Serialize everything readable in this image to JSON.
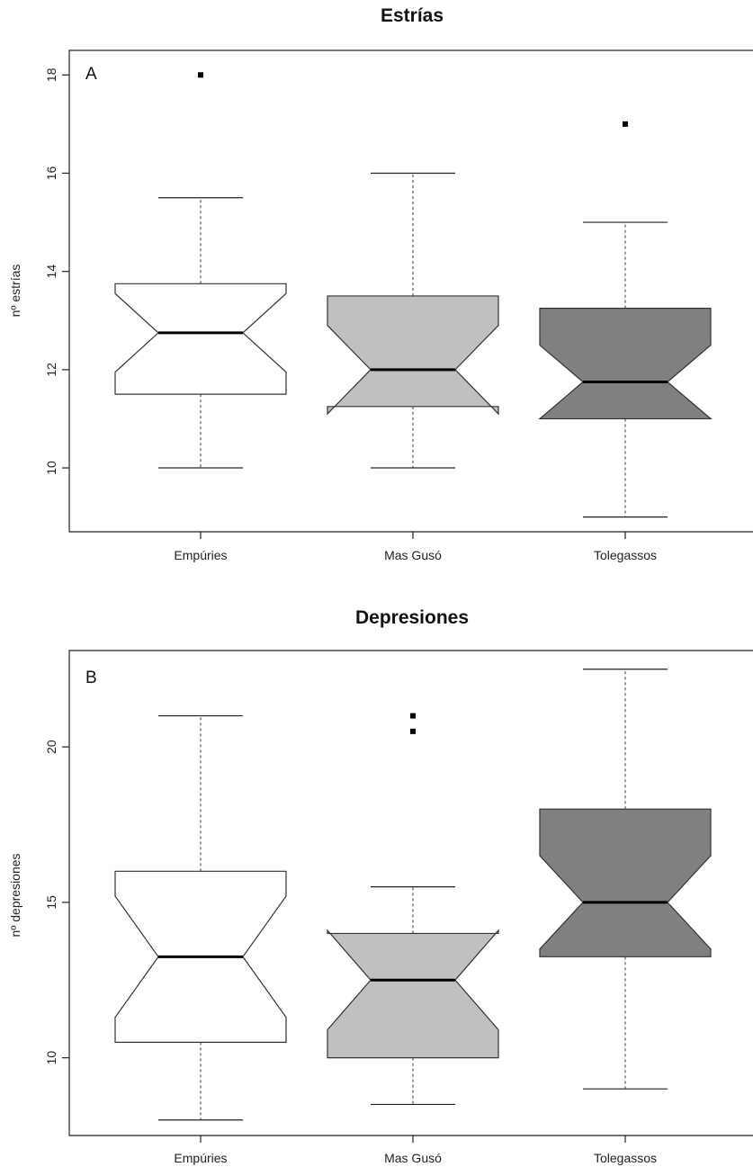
{
  "chart_data": [
    {
      "type": "boxplot",
      "panel_label": "A",
      "title": "Estrías",
      "ylabel": "nº estrías",
      "xlabel": "",
      "categories": [
        "Empúries",
        "Mas Gusó",
        "Tolegassos"
      ],
      "ylim": [
        8.7,
        18.5
      ],
      "yticks": [
        10,
        12,
        14,
        16,
        18
      ],
      "notched": true,
      "grid": false,
      "boxes": [
        {
          "category": "Empúries",
          "whisker_low": 10,
          "q1": 11.5,
          "median": 12.75,
          "q3": 13.75,
          "whisker_high": 15.5,
          "notch_low": 11.95,
          "notch_high": 13.55,
          "outliers": [
            18
          ],
          "color": "#ffffff"
        },
        {
          "category": "Mas Gusó",
          "whisker_low": 10,
          "q1": 11.25,
          "median": 12.0,
          "q3": 13.5,
          "whisker_high": 16,
          "notch_low": 11.1,
          "notch_high": 12.9,
          "outliers": [],
          "color": "#c0c0c0"
        },
        {
          "category": "Tolegassos",
          "whisker_low": 9,
          "q1": 11.0,
          "median": 11.75,
          "q3": 13.25,
          "whisker_high": 15,
          "notch_low": 11.0,
          "notch_high": 12.5,
          "outliers": [
            17
          ],
          "color": "#808080"
        }
      ]
    },
    {
      "type": "boxplot",
      "panel_label": "B",
      "title": "Depresiones",
      "ylabel": "nº depresiones",
      "xlabel": "",
      "categories": [
        "Empúries",
        "Mas Gusó",
        "Tolegassos"
      ],
      "ylim": [
        7.5,
        23.1
      ],
      "yticks": [
        10,
        15,
        20
      ],
      "notched": true,
      "grid": false,
      "boxes": [
        {
          "category": "Empúries",
          "whisker_low": 8,
          "q1": 10.5,
          "median": 13.25,
          "q3": 16,
          "whisker_high": 21,
          "notch_low": 11.3,
          "notch_high": 15.2,
          "outliers": [],
          "color": "#ffffff"
        },
        {
          "category": "Mas Gusó",
          "whisker_low": 8.5,
          "q1": 10,
          "median": 12.5,
          "q3": 14,
          "whisker_high": 15.5,
          "notch_low": 10.9,
          "notch_high": 14.1,
          "outliers": [
            20.5,
            21
          ],
          "color": "#c0c0c0"
        },
        {
          "category": "Tolegassos",
          "whisker_low": 9,
          "q1": 13.25,
          "median": 15,
          "q3": 18,
          "whisker_high": 22.5,
          "notch_low": 13.5,
          "notch_high": 16.5,
          "outliers": [],
          "color": "#808080"
        }
      ]
    }
  ]
}
